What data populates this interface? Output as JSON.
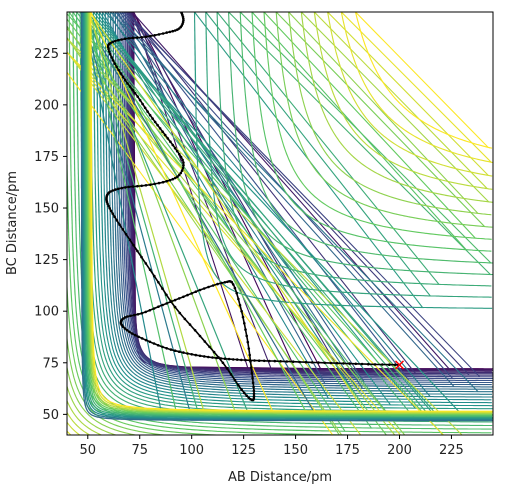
{
  "chart_data": {
    "type": "contour",
    "title": "",
    "xlabel": "AB Distance/pm",
    "ylabel": "BC Distance/pm",
    "xlim": [
      40,
      245
    ],
    "ylim": [
      40,
      245
    ],
    "x_ticks": [
      50,
      75,
      100,
      125,
      150,
      175,
      200,
      225
    ],
    "y_ticks": [
      50,
      75,
      100,
      125,
      150,
      175,
      200,
      225
    ],
    "grid": false,
    "legend": "none",
    "colormap": "viridis",
    "colormap_stops": [
      "#440154",
      "#3b528b",
      "#21918c",
      "#5ec962",
      "#fde725"
    ],
    "contour_levels": 40,
    "trajectory_color": "#000000",
    "trajectory_start": {
      "x": 200,
      "y": 74
    },
    "trajectory_start_marker": "x",
    "trajectory_start_color": "#ff0000",
    "trajectory_waypoints": [
      [
        200,
        74
      ],
      [
        185,
        74.3
      ],
      [
        170,
        74.8
      ],
      [
        155,
        75.3
      ],
      [
        140,
        75.8
      ],
      [
        128,
        76.2
      ],
      [
        118,
        76.8
      ],
      [
        108,
        77.8
      ],
      [
        98,
        79.5
      ],
      [
        88,
        82
      ],
      [
        78,
        86
      ],
      [
        70,
        90
      ],
      [
        66,
        94
      ],
      [
        68,
        97
      ],
      [
        76,
        99
      ],
      [
        86,
        103
      ],
      [
        96,
        107
      ],
      [
        106,
        111
      ],
      [
        116,
        114
      ],
      [
        120,
        113
      ],
      [
        124,
        100
      ],
      [
        127,
        85
      ],
      [
        129,
        70
      ],
      [
        130,
        60
      ],
      [
        129,
        57
      ],
      [
        124,
        62
      ],
      [
        115,
        75
      ],
      [
        104,
        88
      ],
      [
        92,
        102
      ],
      [
        82,
        117
      ],
      [
        72,
        132
      ],
      [
        64,
        144
      ],
      [
        60,
        151
      ],
      [
        59,
        155
      ],
      [
        61,
        158
      ],
      [
        68,
        160
      ],
      [
        78,
        161
      ],
      [
        88,
        163
      ],
      [
        94,
        166
      ],
      [
        96,
        172
      ],
      [
        92,
        179
      ],
      [
        86,
        187
      ],
      [
        80,
        195
      ],
      [
        74,
        204
      ],
      [
        68,
        212
      ],
      [
        63,
        220
      ],
      [
        60,
        227
      ],
      [
        61,
        230
      ],
      [
        68,
        232
      ],
      [
        78,
        233
      ],
      [
        88,
        235
      ],
      [
        94,
        237
      ],
      [
        96,
        241
      ],
      [
        95,
        245
      ]
    ]
  }
}
